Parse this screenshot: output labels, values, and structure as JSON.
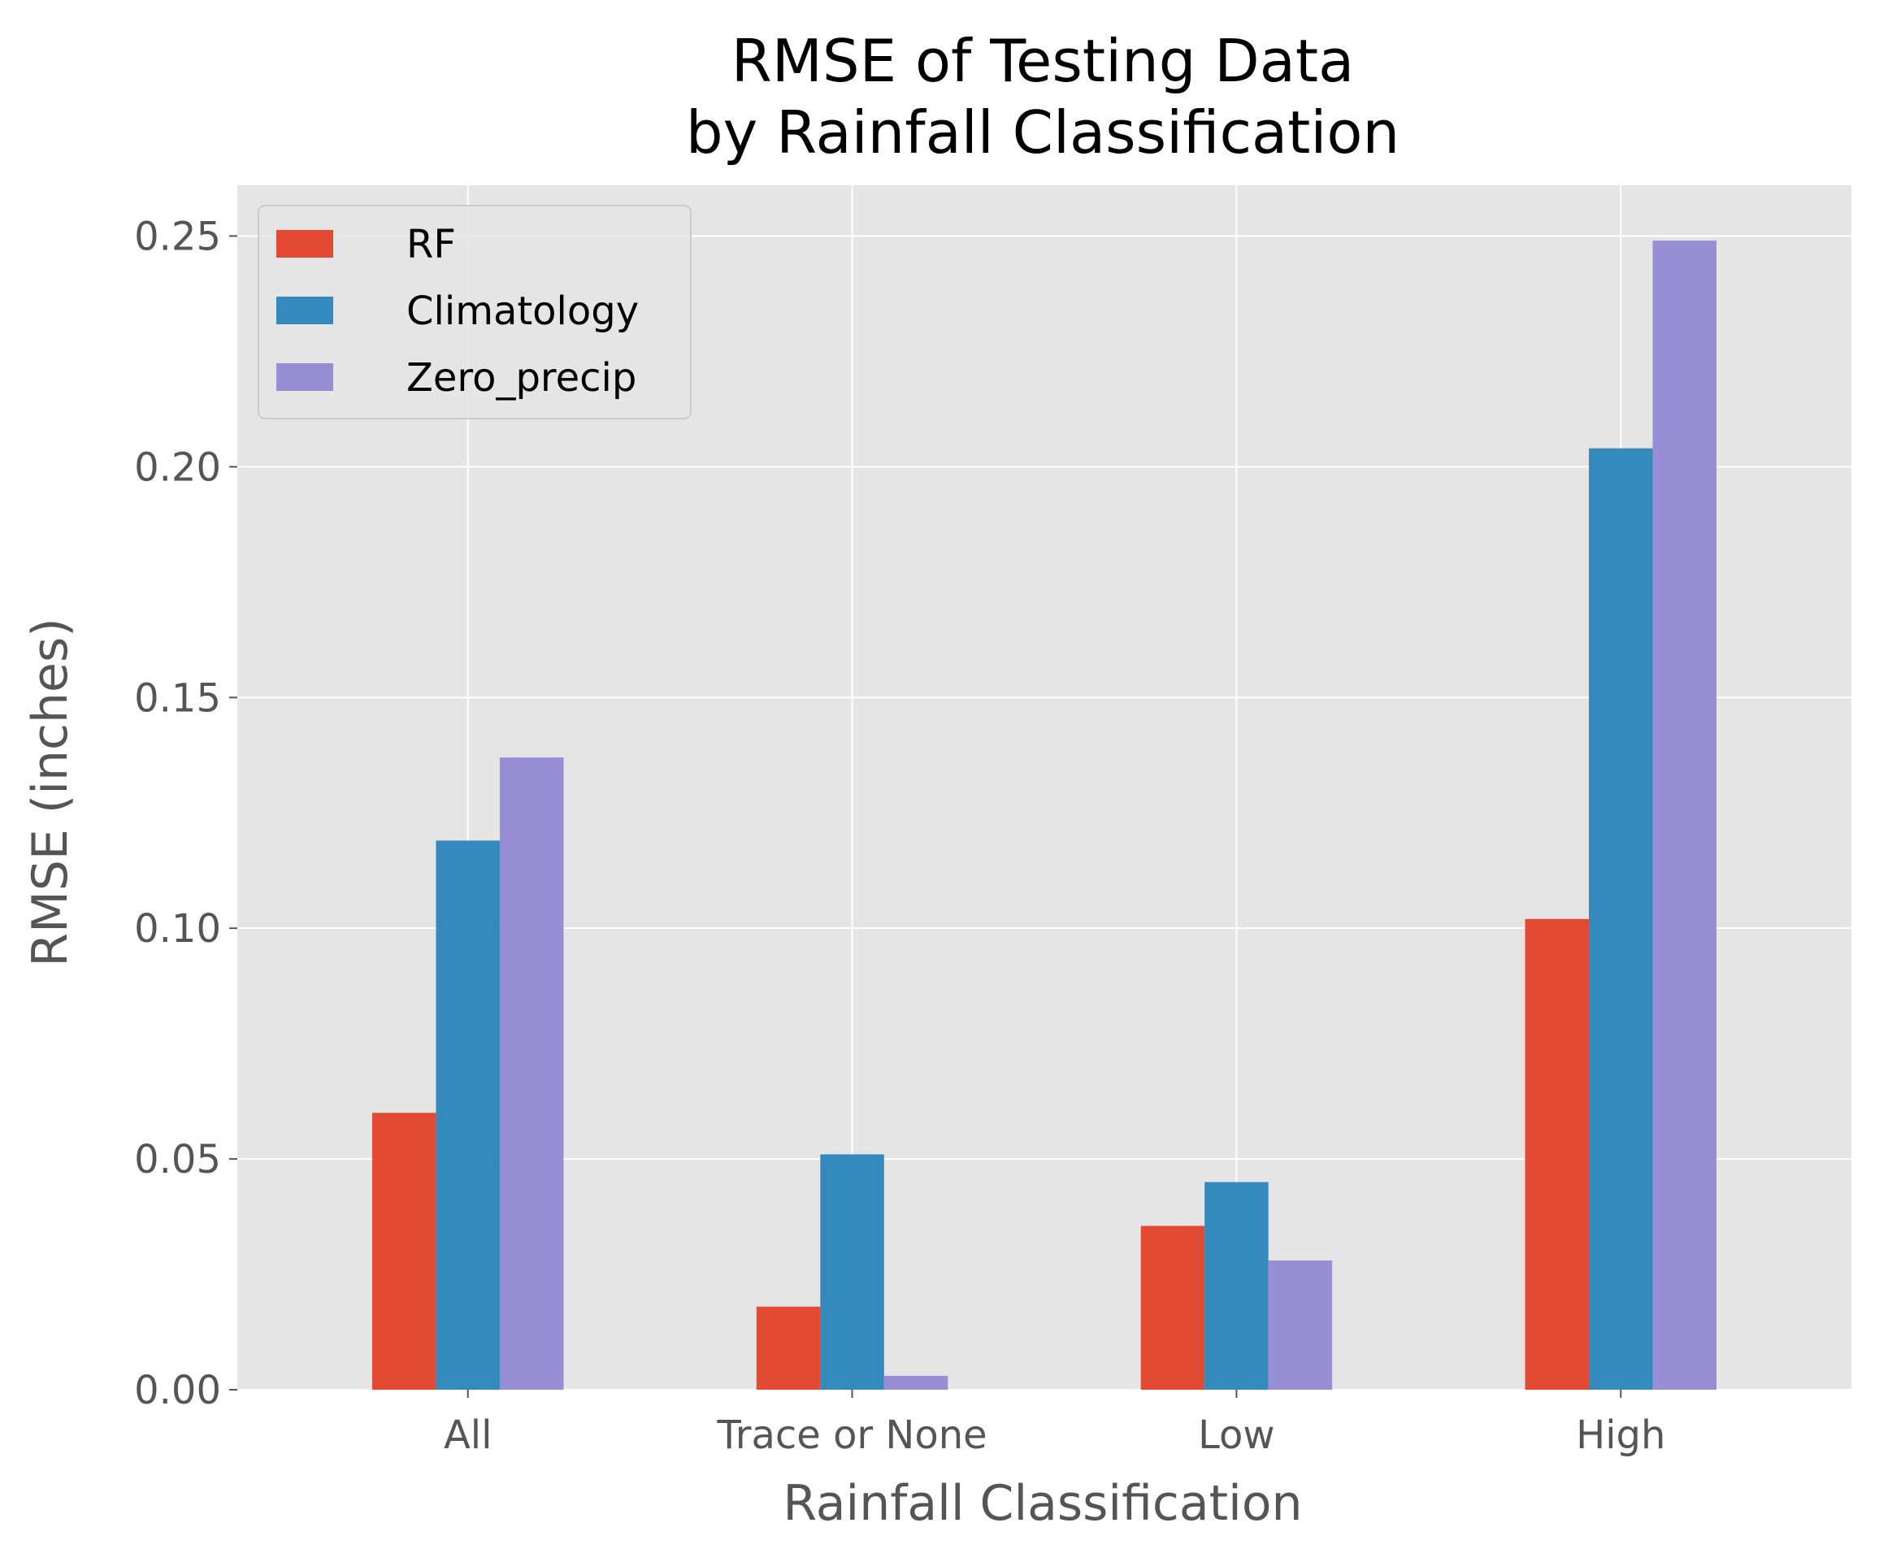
{
  "chart_data": {
    "type": "bar",
    "title_lines": [
      "RMSE of Testing Data",
      "by Rainfall Classification"
    ],
    "xlabel": "Rainfall Classification",
    "ylabel": "RMSE (inches)",
    "categories": [
      "All",
      "Trace or None",
      "Low",
      "High"
    ],
    "series": [
      {
        "name": "RF",
        "color": "#E24A33",
        "values": [
          0.06,
          0.018,
          0.0355,
          0.102
        ]
      },
      {
        "name": "Climatology",
        "color": "#348ABD",
        "values": [
          0.119,
          0.051,
          0.045,
          0.204
        ]
      },
      {
        "name": "Zero_precip",
        "color": "#988ED5",
        "values": [
          0.137,
          0.003,
          0.028,
          0.249
        ]
      }
    ],
    "ylim": [
      0,
      0.261
    ],
    "yticks": [
      0.0,
      0.05,
      0.1,
      0.15,
      0.2,
      0.25
    ],
    "ytick_labels": [
      "0.00",
      "0.05",
      "0.10",
      "0.15",
      "0.20",
      "0.25"
    ],
    "grid": true,
    "legend_position": "upper-left",
    "background_color": "#E5E5E5",
    "grid_color": "#FFFFFF"
  }
}
